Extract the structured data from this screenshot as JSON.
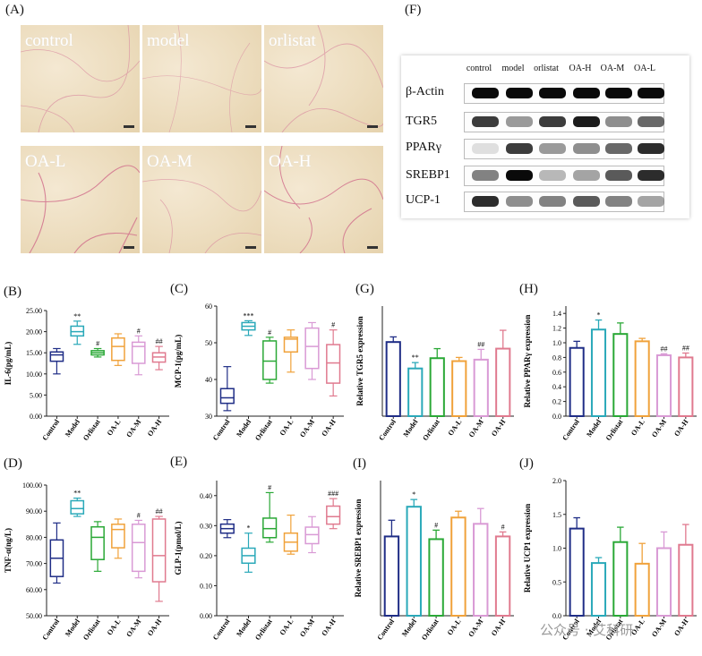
{
  "panels": {
    "A": "(A)",
    "F": "(F)",
    "B": "(B)",
    "C": "(C)",
    "D": "(D)",
    "E": "(E)",
    "G": "(G)",
    "H": "(H)",
    "I": "(I)",
    "J": "(J)"
  },
  "histology": [
    "control",
    "model",
    "orlistat",
    "OA-L",
    "OA-M",
    "OA-H"
  ],
  "western_blot": {
    "columns": [
      "control",
      "model",
      "orlistat",
      "OA-H",
      "OA-M",
      "OA-L"
    ],
    "rows": [
      {
        "label": "β-Actin",
        "intensity": [
          1,
          1,
          1,
          1,
          1,
          1
        ]
      },
      {
        "label": "TGR5",
        "intensity": [
          0.85,
          0.5,
          0.85,
          0.95,
          0.55,
          0.7
        ]
      },
      {
        "label": "PPARγ",
        "intensity": [
          0.1,
          0.85,
          0.5,
          0.55,
          0.7,
          0.9
        ]
      },
      {
        "label": "SREBP1",
        "intensity": [
          0.6,
          1,
          0.35,
          0.45,
          0.75,
          0.9
        ]
      },
      {
        "label": "UCP-1",
        "intensity": [
          0.9,
          0.55,
          0.6,
          0.75,
          0.6,
          0.45
        ]
      }
    ]
  },
  "colors": [
    "#1f2d86",
    "#2aa9b9",
    "#2aa836",
    "#f0a23b",
    "#d99ad5",
    "#e07a8f"
  ],
  "chart_data": [
    {
      "id": "B",
      "type": "box",
      "ylabel": "IL-6(pg/mL)",
      "ylim": [
        0,
        25
      ],
      "yticks": [
        "0.00",
        "5.00",
        "10.00",
        "15.00",
        "20.00",
        "25.00"
      ],
      "ytickvals": [
        0,
        5,
        10,
        15,
        20,
        25
      ],
      "categories": [
        "Control",
        "Model",
        "Orlistat",
        "OA-L",
        "OA-M",
        "OA-H"
      ],
      "boxes": [
        [
          10,
          13,
          14.5,
          15.2,
          16
        ],
        [
          17,
          19,
          20,
          21.3,
          22.5
        ],
        [
          14,
          14.5,
          15,
          15.5,
          16
        ],
        [
          12,
          13.2,
          16.5,
          18.5,
          19.5
        ],
        [
          9.8,
          12.5,
          16.5,
          17.5,
          19
        ],
        [
          11,
          12.8,
          14,
          15,
          16.5
        ]
      ],
      "sig": [
        "",
        "**",
        "#",
        "",
        "#",
        "##"
      ]
    },
    {
      "id": "C",
      "type": "box",
      "ylabel": "MCP-1(pg/mL)",
      "ylim": [
        30,
        60
      ],
      "yticks": [
        "30",
        "40",
        "50",
        "60"
      ],
      "ytickvals": [
        30,
        40,
        50,
        60
      ],
      "categories": [
        "Control",
        "Model",
        "Orlistat",
        "OA-L",
        "OA-M",
        "OA-H"
      ],
      "boxes": [
        [
          31.5,
          33.5,
          35,
          37.5,
          43.5
        ],
        [
          52,
          53.5,
          54.5,
          55.5,
          56
        ],
        [
          39,
          40,
          45,
          50.5,
          51.5
        ],
        [
          42,
          47.5,
          51,
          51.5,
          53.5
        ],
        [
          40,
          43,
          49,
          54,
          55.5
        ],
        [
          35.5,
          39,
          44.5,
          49.5,
          53.5
        ]
      ],
      "sig": [
        "",
        "***",
        "#",
        "",
        "",
        "#"
      ]
    },
    {
      "id": "D",
      "type": "box",
      "ylabel": "TNF-α(ng/L)",
      "ylim": [
        50,
        100
      ],
      "yticks": [
        "50.00",
        "60.00",
        "70.00",
        "80.00",
        "90.00",
        "100.00"
      ],
      "ytickvals": [
        50,
        60,
        70,
        80,
        90,
        100
      ],
      "categories": [
        "Control",
        "Model",
        "Orlistat",
        "OA-L",
        "OA-M",
        "OA-H"
      ],
      "boxes": [
        [
          62.5,
          65,
          72,
          79,
          85.5
        ],
        [
          88,
          89,
          91,
          94,
          95
        ],
        [
          67,
          71.5,
          80,
          84,
          86
        ],
        [
          72,
          76,
          83,
          85,
          87
        ],
        [
          64.5,
          67,
          78,
          85,
          86.5
        ],
        [
          55.5,
          63,
          73,
          87,
          88
        ]
      ],
      "sig": [
        "",
        "**",
        "",
        "",
        "#",
        "##"
      ]
    },
    {
      "id": "E",
      "type": "box",
      "ylabel": "GLP-1(pmol/L)",
      "ylim": [
        0,
        0.45
      ],
      "yticks": [
        "0.00",
        "0.10",
        "0.20",
        "0.30",
        "0.40"
      ],
      "ytickvals": [
        0,
        0.1,
        0.2,
        0.3,
        0.4
      ],
      "categories": [
        "Control",
        "Model",
        "Orlistat",
        "OA-L",
        "OA-M",
        "OA-H"
      ],
      "boxes": [
        [
          0.26,
          0.275,
          0.29,
          0.305,
          0.32
        ],
        [
          0.145,
          0.175,
          0.2,
          0.225,
          0.275
        ],
        [
          0.245,
          0.26,
          0.29,
          0.325,
          0.41
        ],
        [
          0.205,
          0.215,
          0.245,
          0.275,
          0.335
        ],
        [
          0.21,
          0.24,
          0.27,
          0.295,
          0.33
        ],
        [
          0.29,
          0.305,
          0.33,
          0.365,
          0.39
        ]
      ],
      "sig": [
        "",
        "*",
        "#",
        "",
        "",
        "###"
      ]
    },
    {
      "id": "G",
      "type": "bar",
      "ylabel": "Relative TGR5 expression",
      "ylim": [
        0,
        1.5
      ],
      "yticks": [],
      "categories": [
        "Control",
        "Model",
        "Orlistat",
        "OA-L",
        "OA-M",
        "OA-H"
      ],
      "values": [
        1.01,
        0.65,
        0.79,
        0.75,
        0.77,
        0.92
      ],
      "errors": [
        0.07,
        0.08,
        0.13,
        0.05,
        0.14,
        0.25
      ],
      "sig": [
        "",
        "**",
        "",
        "",
        "##",
        ""
      ]
    },
    {
      "id": "H",
      "type": "bar",
      "ylabel": "Relative PPARγ expression",
      "ylim": [
        0,
        1.5
      ],
      "yticks": [
        "0.0",
        "0.2",
        "0.4",
        "0.6",
        "0.8",
        "1.0",
        "1.2",
        "1.4"
      ],
      "ytickvals": [
        0,
        0.2,
        0.4,
        0.6,
        0.8,
        1.0,
        1.2,
        1.4
      ],
      "categories": [
        "Control",
        "Model",
        "Orlistat",
        "OA-L",
        "OA-M",
        "OA-H"
      ],
      "values": [
        0.93,
        1.18,
        1.12,
        1.02,
        0.83,
        0.8
      ],
      "errors": [
        0.09,
        0.13,
        0.15,
        0.04,
        0.02,
        0.06
      ],
      "sig": [
        "",
        "*",
        "",
        "",
        "##",
        "##"
      ]
    },
    {
      "id": "I",
      "type": "bar",
      "ylabel": "Relative SREBP1 expression",
      "ylim": [
        0,
        1.5
      ],
      "yticks": [],
      "categories": [
        "Control",
        "Model",
        "Orlistat",
        "OA-L",
        "OA-M",
        "OA-H"
      ],
      "values": [
        0.88,
        1.21,
        0.85,
        1.09,
        1.02,
        0.88
      ],
      "errors": [
        0.18,
        0.08,
        0.1,
        0.07,
        0.17,
        0.05
      ],
      "sig": [
        "",
        "*",
        "#",
        "",
        "",
        "#"
      ]
    },
    {
      "id": "J",
      "type": "bar",
      "ylabel": "Relative UCP1 expression",
      "ylim": [
        0,
        2.0
      ],
      "yticks": [
        "0.0",
        "0.5",
        "1.0",
        "1.5",
        "2.0"
      ],
      "ytickvals": [
        0,
        0.5,
        1.0,
        1.5,
        2.0
      ],
      "categories": [
        "Control",
        "Model",
        "Orlistat",
        "OA-L",
        "OA-M",
        "OA-H"
      ],
      "values": [
        1.29,
        0.78,
        1.09,
        0.77,
        1.0,
        1.05
      ],
      "errors": [
        0.16,
        0.08,
        0.22,
        0.3,
        0.24,
        0.3
      ],
      "sig": [
        "",
        "",
        "",
        "",
        "",
        ""
      ]
    }
  ],
  "watermark": "公众号 · 艾科研"
}
